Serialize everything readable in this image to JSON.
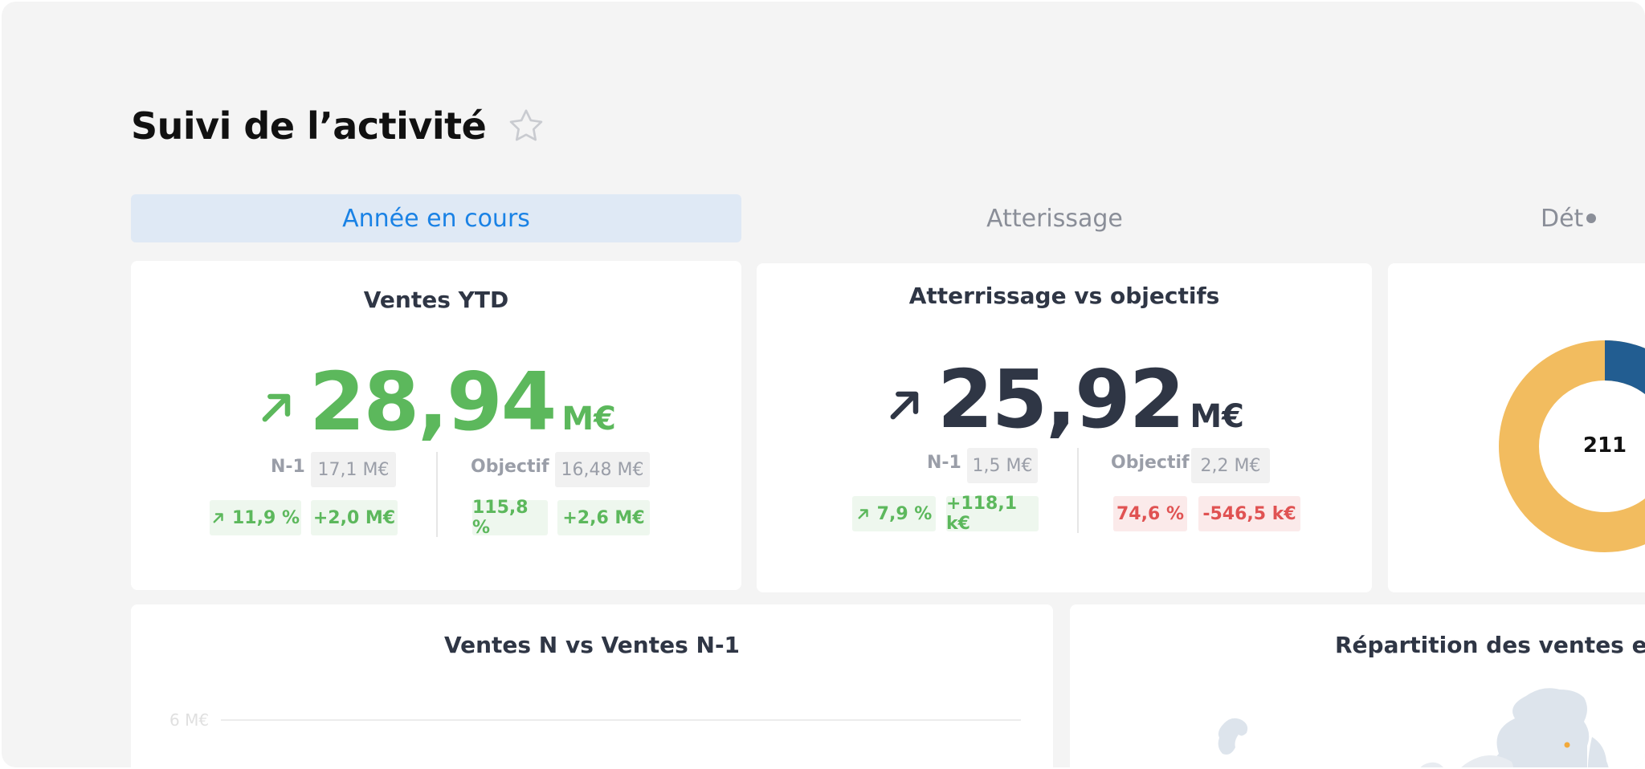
{
  "page": {
    "title": "Suivi de l’activité"
  },
  "tabs": [
    {
      "label": "Année en cours",
      "active": true
    },
    {
      "label": "Atterissage",
      "active": false
    },
    {
      "label": "Dét",
      "active": false
    }
  ],
  "kpi_sales": {
    "title": "Ventes YTD",
    "value": "28,94",
    "unit": "M€",
    "n1_label": "N-1",
    "n1_value": "17,1 M€",
    "target_label": "Objectif",
    "target_value": "16,48 M€",
    "n1_pct": "11,9 %",
    "n1_delta": "+2,0 M€",
    "target_pct": "115,8 %",
    "target_delta": "+2,6 M€"
  },
  "kpi_landing": {
    "title": "Atterrissage vs objectifs",
    "value": "25,92",
    "unit": "M€",
    "n1_label": "N-1",
    "n1_value": "1,5 M€",
    "target_label": "Objectif",
    "target_value": "2,2 M€",
    "n1_pct": "7,9 %",
    "n1_delta": "+118,1 k€",
    "target_pct": "74,6 %",
    "target_delta": "-546,5 k€"
  },
  "donut": {
    "center_value": "211"
  },
  "chart_card": {
    "title": "Ventes N vs Ventes N-1",
    "y_tick": "6 M€"
  },
  "map_card": {
    "title": "Répartition des ventes et d"
  },
  "colors": {
    "accent": "#1a82e5",
    "positive": "#5cb85c",
    "negative": "#e05252",
    "donut_orange": "#f2bc5f",
    "donut_blue": "#225d91"
  }
}
